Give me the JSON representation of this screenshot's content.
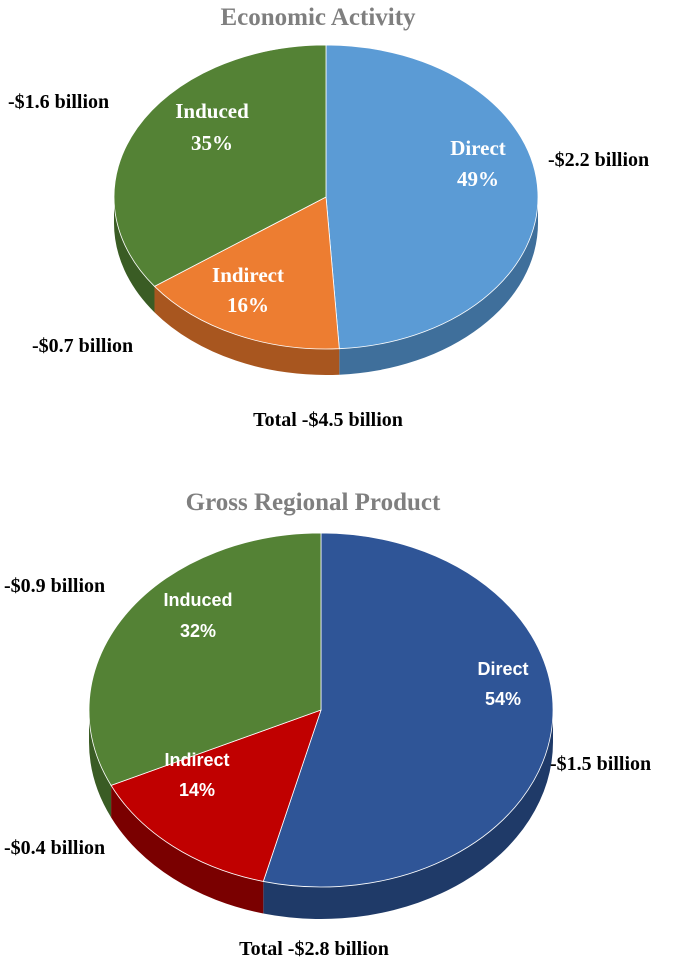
{
  "chart_data": [
    {
      "type": "pie",
      "title": "Economic Activity",
      "total": "Total -$4.5 billion",
      "slices": [
        {
          "name": "Direct",
          "pct": 49,
          "pct_label": "49%",
          "value_label": "-$2.2 billion",
          "color": "#5b9bd5",
          "side": "#3f6f9b"
        },
        {
          "name": "Indirect",
          "pct": 16,
          "pct_label": "16%",
          "value_label": "-$0.7 billion",
          "color": "#ed7d31",
          "side": "#a8561f"
        },
        {
          "name": "Induced",
          "pct": 35,
          "pct_label": "35%",
          "value_label": "-$1.6 billion",
          "color": "#548235",
          "side": "#3a5c24"
        }
      ]
    },
    {
      "type": "pie",
      "title": "Gross Regional Product",
      "total": "Total -$2.8 billion",
      "slices": [
        {
          "name": "Direct",
          "pct": 54,
          "pct_label": "54%",
          "value_label": "-$1.5 billion",
          "color": "#2f5597",
          "side": "#1f3a68"
        },
        {
          "name": "Indirect",
          "pct": 14,
          "pct_label": "14%",
          "value_label": "-$0.4 billion",
          "color": "#c00000",
          "side": "#7a0000"
        },
        {
          "name": "Induced",
          "pct": 32,
          "pct_label": "32%",
          "value_label": "-$0.9 billion",
          "color": "#548235",
          "side": "#3a5c24"
        }
      ]
    }
  ]
}
